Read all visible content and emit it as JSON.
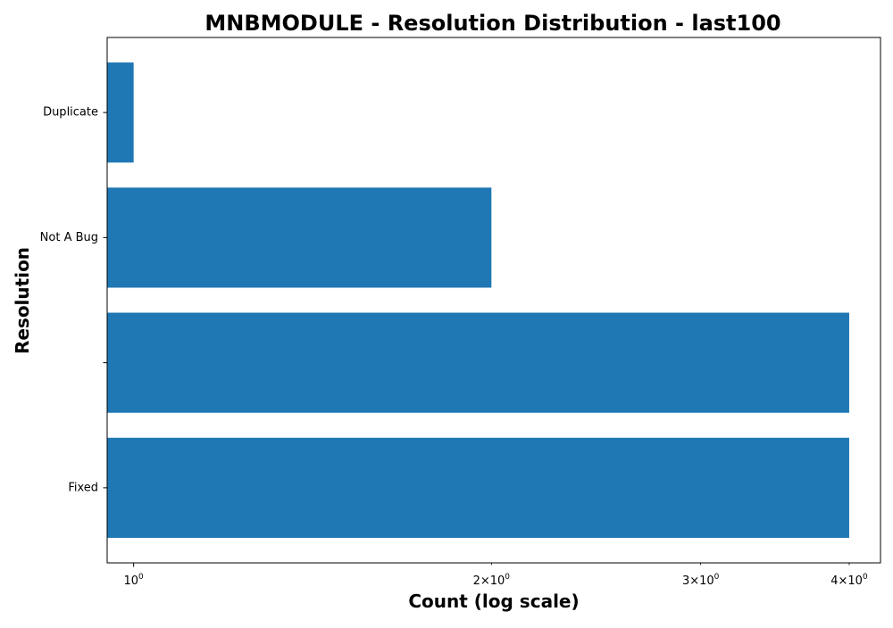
{
  "chart_data": {
    "type": "bar",
    "orientation": "horizontal",
    "title": "MNBMODULE - Resolution Distribution - last100",
    "xlabel": "Count (log scale)",
    "ylabel": "Resolution",
    "x_scale": "log",
    "xlim": [
      0.95,
      4.25
    ],
    "categories": [
      "Fixed",
      "",
      "Not A Bug",
      "Duplicate"
    ],
    "values": [
      4,
      4,
      2,
      1
    ],
    "x_ticks": [
      {
        "value": 1,
        "label": "10",
        "sup": "0"
      },
      {
        "value": 2,
        "label": "2×10",
        "sup": "0"
      },
      {
        "value": 3,
        "label": "3×10",
        "sup": "0"
      },
      {
        "value": 4,
        "label": "4×10",
        "sup": "0"
      }
    ],
    "grid": false,
    "legend": "none",
    "bar_color": "#1f77b4"
  }
}
